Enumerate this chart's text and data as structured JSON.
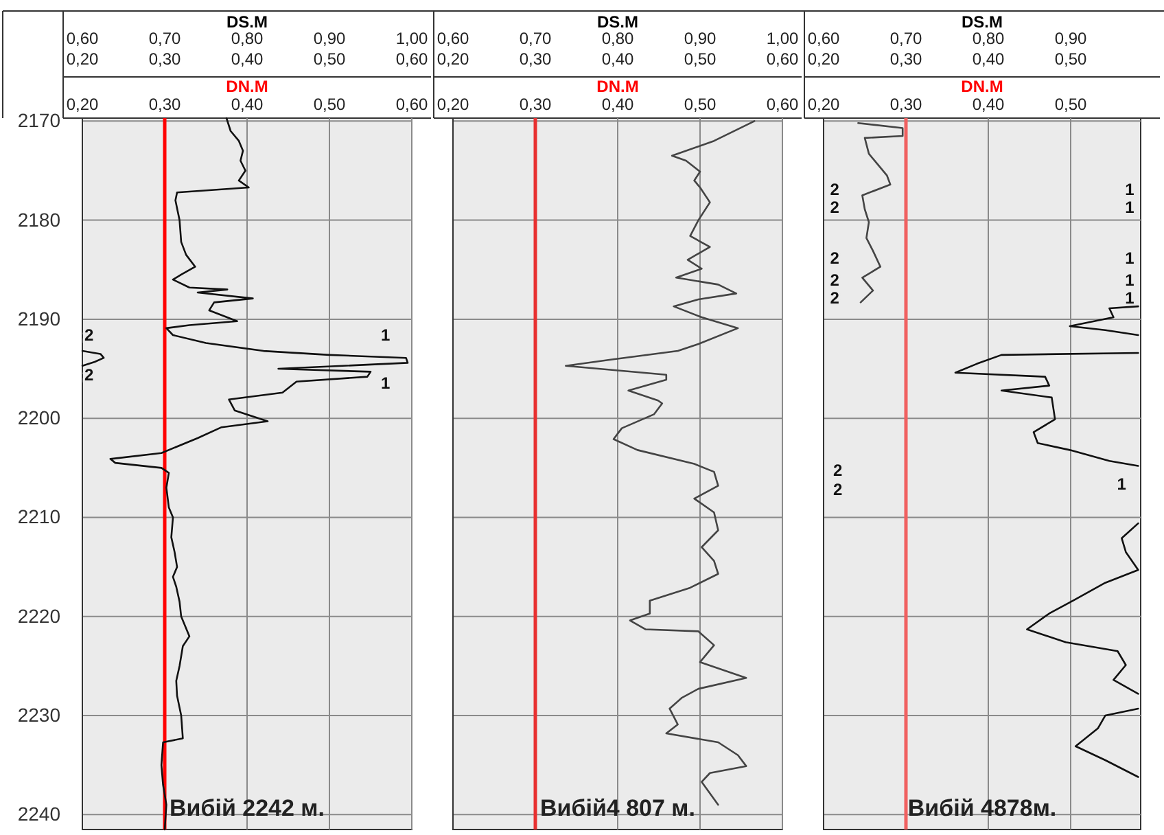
{
  "chart_data": [
    {
      "type": "line",
      "orientation": "horizontal",
      "xlabel": "DN.M",
      "x2label": "DS.M",
      "xlim": [
        0.2,
        0.6
      ],
      "xticks": [
        {
          "value": 0.2,
          "label": "0,20"
        },
        {
          "value": 0.3,
          "label": "0,30"
        },
        {
          "value": 0.4,
          "label": "0,40"
        },
        {
          "value": 0.5,
          "label": "0,50"
        },
        {
          "value": 0.6,
          "label": "0,60"
        }
      ],
      "x2lim": [
        0.6,
        1.0
      ],
      "x2ticks": [
        {
          "value": 0.6,
          "label": "0,60"
        },
        {
          "value": 0.7,
          "label": "0,70"
        },
        {
          "value": 0.8,
          "label": "0,80"
        },
        {
          "value": 0.9,
          "label": "0,90"
        },
        {
          "value": 1.0,
          "label": "1,00"
        }
      ],
      "ylim": [
        2241.5,
        2169.7
      ],
      "yticks": [
        2170,
        2180,
        2190,
        2200,
        2210,
        2220,
        2230,
        2240
      ],
      "grid": true,
      "ref_lines": [
        {
          "axis": "x",
          "value": 0.3,
          "color": "#ff0000"
        }
      ],
      "series": [
        {
          "color": "#111111",
          "x": [
            2169.7,
            2171,
            2172,
            2173,
            2174,
            2175,
            2176,
            2176.7,
            2177.2,
            2178,
            2180,
            2182.2,
            2183.5,
            2184.7,
            2185.5,
            2186,
            2186.8,
            2187,
            2187.3,
            2187.9,
            2188.3,
            2189.1,
            2190.2,
            2190.6,
            2190.9,
            2191.6,
            2192.4,
            2193.2,
            2193.6,
            2193.9,
            2194.4,
            2195.0,
            2195.3,
            2195.8,
            2196.3,
            2197.4,
            2198.1,
            2199.2,
            2200.3,
            2200.9,
            2202,
            2203.5,
            2204.1,
            2204.5,
            2205,
            2205.5,
            2207,
            2209,
            2210,
            2212,
            2213.5,
            2215,
            2216,
            2217,
            2218.5,
            2220,
            2222,
            2223,
            2225,
            2226.5,
            2228,
            2230,
            2232.3,
            2232.7,
            2235,
            2237,
            2239,
            2241.5
          ],
          "values": [
            0.375,
            0.38,
            0.39,
            0.395,
            0.392,
            0.398,
            0.39,
            0.402,
            0.315,
            0.313,
            0.318,
            0.32,
            0.326,
            0.337,
            0.32,
            0.31,
            0.33,
            0.376,
            0.34,
            0.407,
            0.36,
            0.354,
            0.388,
            0.33,
            0.302,
            0.31,
            0.35,
            0.42,
            0.5,
            0.593,
            0.595,
            0.438,
            0.55,
            0.546,
            0.46,
            0.443,
            0.378,
            0.385,
            0.425,
            0.369,
            0.34,
            0.296,
            0.234,
            0.24,
            0.296,
            0.305,
            0.302,
            0.305,
            0.31,
            0.308,
            0.312,
            0.315,
            0.31,
            0.314,
            0.318,
            0.32,
            0.33,
            0.322,
            0.318,
            0.314,
            0.315,
            0.32,
            0.322,
            0.298,
            0.296,
            0.298,
            0.302,
            0.3
          ]
        },
        {
          "color": "#111111",
          "x": [
            2193.2,
            2193.5,
            2193.9,
            2194.3,
            2194.7
          ],
          "values": [
            0.2,
            0.222,
            0.226,
            0.215,
            0.2
          ]
        }
      ],
      "annotations": [
        "2",
        "2",
        "1",
        "1",
        "Вибій 2242 м."
      ]
    },
    {
      "type": "line",
      "orientation": "horizontal",
      "xlabel": "DN.M",
      "x2label": "DS.M",
      "xlim": [
        0.2,
        0.6
      ],
      "xticks": [
        {
          "value": 0.2,
          "label": "0,20"
        },
        {
          "value": 0.3,
          "label": "0,30"
        },
        {
          "value": 0.4,
          "label": "0,40"
        },
        {
          "value": 0.5,
          "label": "0,50"
        },
        {
          "value": 0.6,
          "label": "0,60"
        }
      ],
      "x2lim": [
        0.6,
        1.0
      ],
      "x2ticks": [
        {
          "value": 0.6,
          "label": "0,60"
        },
        {
          "value": 0.7,
          "label": "0,70"
        },
        {
          "value": 0.8,
          "label": "0,80"
        },
        {
          "value": 0.9,
          "label": "0,90"
        },
        {
          "value": 1.0,
          "label": "1,00"
        }
      ],
      "ylim": [
        2241.5,
        2169.7
      ],
      "yticks": [
        2170,
        2180,
        2190,
        2200,
        2210,
        2220,
        2230,
        2240
      ],
      "grid": true,
      "tick_labels": "x",
      "ref_lines": [
        {
          "axis": "x",
          "value": 0.3,
          "color": "#e83030"
        }
      ],
      "series": [
        {
          "color": "#444444",
          "x": [
            2170,
            2172,
            2173.5,
            2174,
            2175.1,
            2176,
            2176.7,
            2178.2,
            2180,
            2181.6,
            2182.7,
            2184,
            2184.9,
            2185.8,
            2186.5,
            2187.4,
            2188,
            2188.7,
            2189.8,
            2190.9,
            2192.5,
            2193.2,
            2194.1,
            2194.7,
            2195.6,
            2196.1,
            2197.2,
            2198.2,
            2198.5,
            2199.6,
            2201,
            2202.1,
            2203.2,
            2204.6,
            2205.4,
            2206.8,
            2208.1,
            2209.5,
            2211.3,
            2213,
            2214.4,
            2215.7,
            2217.1,
            2218.4,
            2219.7,
            2220.4,
            2221.3,
            2221.5,
            2222.9,
            2224.6,
            2226.2,
            2227.3,
            2228.2,
            2229.3,
            2230.9,
            2231.8,
            2232.7,
            2234,
            2235.1,
            2235.8,
            2236.7,
            2239
          ],
          "values": [
            0.566,
            0.517,
            0.466,
            0.483,
            0.5,
            0.493,
            0.5,
            0.512,
            0.498,
            0.488,
            0.512,
            0.485,
            0.502,
            0.471,
            0.522,
            0.544,
            0.498,
            0.468,
            0.502,
            0.546,
            0.498,
            0.473,
            0.39,
            0.337,
            0.459,
            0.459,
            0.413,
            0.449,
            0.454,
            0.444,
            0.405,
            0.395,
            0.424,
            0.493,
            0.517,
            0.522,
            0.493,
            0.517,
            0.522,
            0.502,
            0.517,
            0.522,
            0.488,
            0.439,
            0.439,
            0.415,
            0.434,
            0.498,
            0.517,
            0.5,
            0.556,
            0.498,
            0.478,
            0.463,
            0.473,
            0.459,
            0.522,
            0.546,
            0.556,
            0.512,
            0.502,
            0.522
          ]
        }
      ],
      "annotations": [
        "Вибій4 807 м."
      ]
    },
    {
      "type": "line",
      "orientation": "horizontal",
      "xlabel": "DN.M",
      "x2label": "DS.M",
      "xlim": [
        0.2,
        0.585
      ],
      "xticks": [
        {
          "value": 0.2,
          "label": "0,20"
        },
        {
          "value": 0.3,
          "label": "0,30"
        },
        {
          "value": 0.4,
          "label": "0,40"
        },
        {
          "value": 0.5,
          "label": "0,50"
        }
      ],
      "x2lim": [
        0.6,
        0.985
      ],
      "x2ticks": [
        {
          "value": 0.6,
          "label": "0,60"
        },
        {
          "value": 0.7,
          "label": "0,70"
        },
        {
          "value": 0.8,
          "label": "0,80"
        },
        {
          "value": 0.9,
          "label": "0,90"
        }
      ],
      "ylim": [
        2241.5,
        2169.7
      ],
      "yticks": [
        2170,
        2180,
        2190,
        2200,
        2210,
        2220,
        2230,
        2240
      ],
      "grid": true,
      "tick_labels": "x",
      "ref_lines": [
        {
          "axis": "x",
          "value": 0.3,
          "color": "#f06060"
        }
      ],
      "series": [
        {
          "color": "#444444",
          "x": [
            2170.2,
            2170.7,
            2171.5,
            2171.7,
            2173.3,
            2174.2,
            2175.5,
            2176.4,
            2177.5,
            2178.9,
            2180.2,
            2181.8,
            2183.1,
            2184.7,
            2185.8,
            2187.1,
            2188.3
          ],
          "values": [
            0.242,
            0.296,
            0.296,
            0.25,
            0.255,
            0.264,
            0.277,
            0.281,
            0.247,
            0.25,
            0.255,
            0.252,
            0.26,
            0.269,
            0.247,
            0.26,
            0.245
          ]
        },
        {
          "color": "#111111",
          "x": [
            2188.7,
            2188.9,
            2189.8,
            2190.7,
            2191.1,
            2191.6,
            2192.5,
            2193.4,
            2193.6,
            2194.5,
            2195.4,
            2195.8,
            2196.7,
            2197.2,
            2197.9,
            2200.1,
            2201.4,
            2202.5,
            2203.2,
            2204.3,
            2204.8,
            2207.7,
            2210.6,
            2212.1,
            2213.5,
            2215.3,
            2216.6,
            2218.4,
            2219.7,
            2221.3,
            2222.6,
            2223.5,
            2224.9,
            2226.4,
            2227.8,
            2228.5,
            2229.3,
            2230,
            2231.3,
            2233.1,
            2234.5,
            2236.2
          ],
          "values": [
            0.582,
            0.547,
            0.552,
            0.499,
            0.542,
            0.582,
            null,
            0.582,
            0.416,
            0.386,
            0.36,
            0.469,
            0.474,
            0.416,
            0.477,
            0.481,
            0.455,
            0.46,
            0.499,
            0.547,
            0.582,
            null,
            0.582,
            0.562,
            0.567,
            0.582,
            0.542,
            0.503,
            0.474,
            0.447,
            0.494,
            0.557,
            0.567,
            0.552,
            0.582,
            null,
            0.582,
            0.542,
            0.533,
            0.506,
            0.542,
            0.582
          ]
        }
      ],
      "annotations": [
        "2",
        "2",
        "2",
        "2",
        "2",
        "2",
        "2",
        "1",
        "1",
        "1",
        "1",
        "1",
        "1",
        "Вибій 4878м."
      ]
    }
  ]
}
